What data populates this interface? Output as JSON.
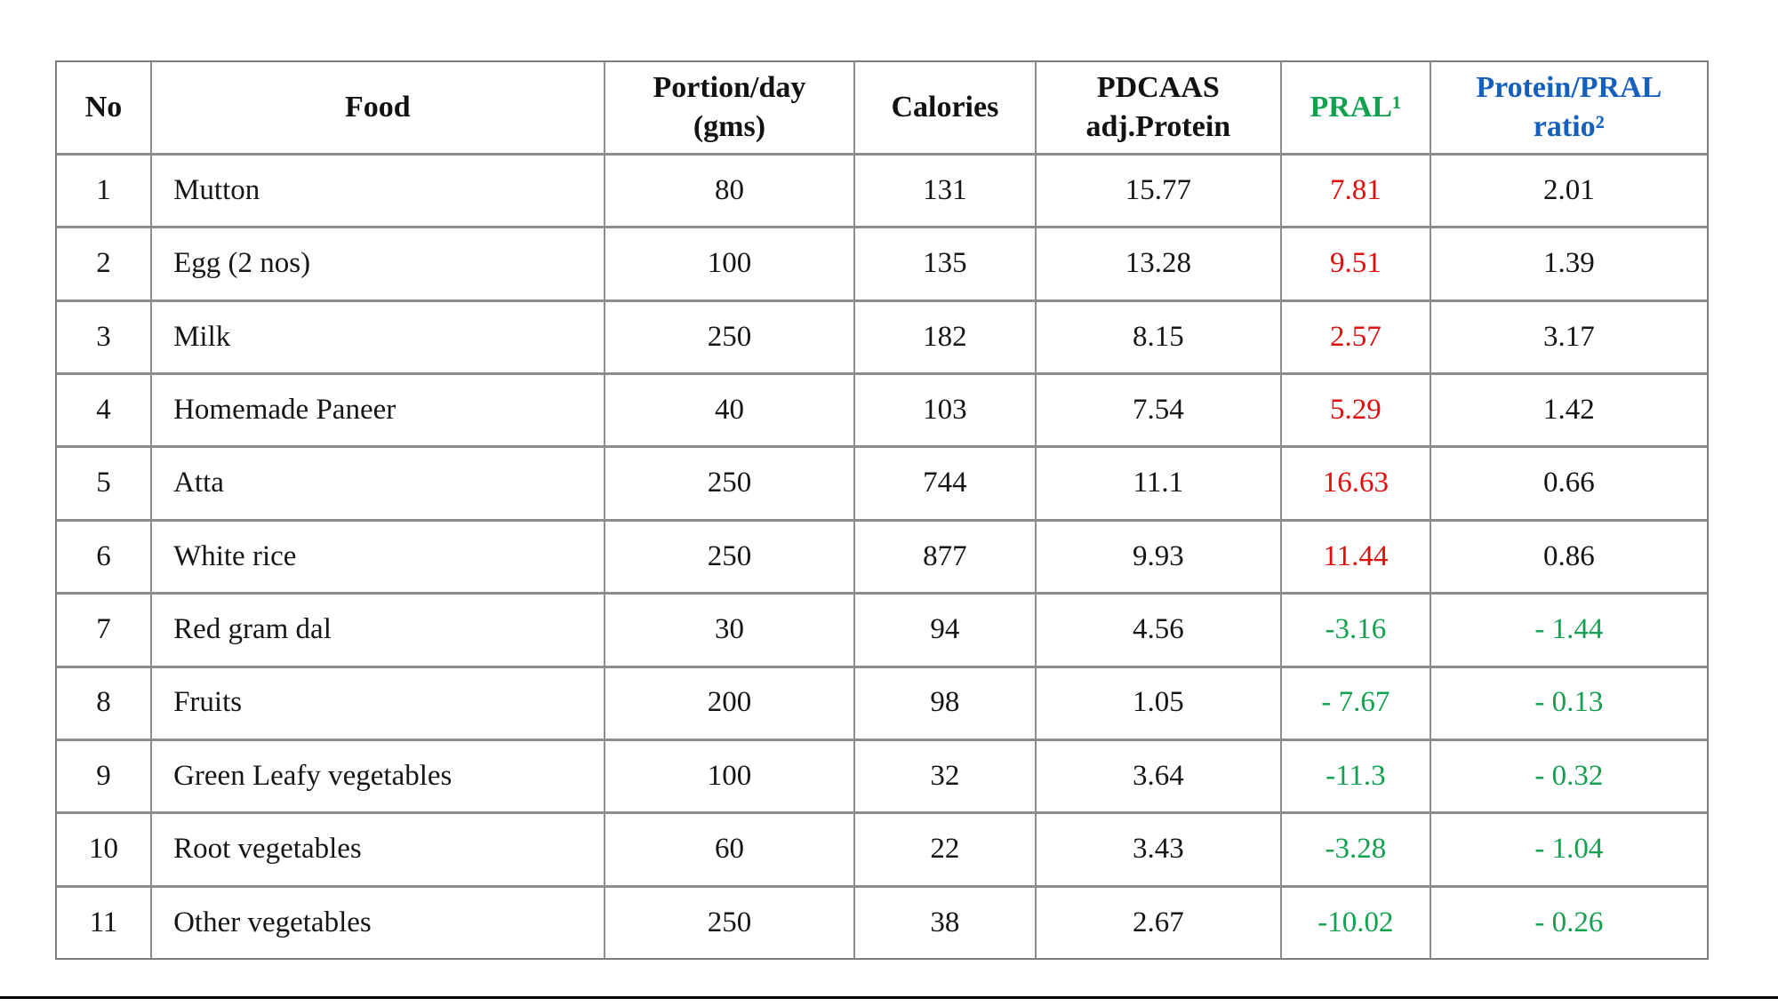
{
  "palette": {
    "header_text": "#121212",
    "body_text": "#141414",
    "acidic_red": "#e20c0c",
    "alkaline_green": "#12a24f",
    "ratio_blue": "#1560bd",
    "gridline_gray": "#8c8c8c",
    "bottom_rule_black": "#000000"
  },
  "chart_data": {
    "type": "table",
    "columns": [
      {
        "key": "no",
        "label": "No",
        "color": "#121212",
        "align": "center"
      },
      {
        "key": "food",
        "label": "Food",
        "color": "#121212",
        "align": "center"
      },
      {
        "key": "portion",
        "label": "Portion/day\n(gms)",
        "color": "#121212",
        "align": "center"
      },
      {
        "key": "calories",
        "label": "Calories",
        "color": "#121212",
        "align": "center"
      },
      {
        "key": "protein",
        "label": "PDCAAS\nadj.Protein",
        "color": "#121212",
        "align": "center"
      },
      {
        "key": "pral",
        "label": "PRAL¹",
        "color": "#12a24f",
        "align": "center"
      },
      {
        "key": "ratio",
        "label": "Protein/PRAL\nratio²",
        "color": "#1560bd",
        "align": "center"
      }
    ],
    "food_column_align": "left",
    "rows": [
      {
        "no": "1",
        "food": "Mutton",
        "portion": "80",
        "calories": "131",
        "protein": "15.77",
        "pral": "7.81",
        "ratio": "2.01",
        "pral_color": "#e20c0c",
        "ratio_color": "#141414"
      },
      {
        "no": "2",
        "food": "Egg (2 nos)",
        "portion": "100",
        "calories": "135",
        "protein": "13.28",
        "pral": "9.51",
        "ratio": "1.39",
        "pral_color": "#e20c0c",
        "ratio_color": "#141414"
      },
      {
        "no": "3",
        "food": "Milk",
        "portion": "250",
        "calories": "182",
        "protein": "8.15",
        "pral": "2.57",
        "ratio": "3.17",
        "pral_color": "#e20c0c",
        "ratio_color": "#141414"
      },
      {
        "no": "4",
        "food": "Homemade Paneer",
        "portion": "40",
        "calories": "103",
        "protein": "7.54",
        "pral": "5.29",
        "ratio": "1.42",
        "pral_color": "#e20c0c",
        "ratio_color": "#141414"
      },
      {
        "no": "5",
        "food": "Atta",
        "portion": "250",
        "calories": "744",
        "protein": "11.1",
        "pral": "16.63",
        "ratio": "0.66",
        "pral_color": "#e20c0c",
        "ratio_color": "#141414"
      },
      {
        "no": "6",
        "food": "White rice",
        "portion": "250",
        "calories": "877",
        "protein": "9.93",
        "pral": "11.44",
        "ratio": "0.86",
        "pral_color": "#e20c0c",
        "ratio_color": "#141414"
      },
      {
        "no": "7",
        "food": "Red gram dal",
        "portion": "30",
        "calories": "94",
        "protein": "4.56",
        "pral": "-3.16",
        "ratio": "- 1.44",
        "pral_color": "#12a24f",
        "ratio_color": "#12a24f"
      },
      {
        "no": "8",
        "food": "Fruits",
        "portion": "200",
        "calories": "98",
        "protein": "1.05",
        "pral": "- 7.67",
        "ratio": "- 0.13",
        "pral_color": "#12a24f",
        "ratio_color": "#12a24f"
      },
      {
        "no": "9",
        "food": "Green Leafy vegetables",
        "portion": "100",
        "calories": "32",
        "protein": "3.64",
        "pral": "-11.3",
        "ratio": "- 0.32",
        "pral_color": "#12a24f",
        "ratio_color": "#12a24f"
      },
      {
        "no": "10",
        "food": "Root vegetables",
        "portion": "60",
        "calories": "22",
        "protein": "3.43",
        "pral": "-3.28",
        "ratio": "- 1.04",
        "pral_color": "#12a24f",
        "ratio_color": "#12a24f"
      },
      {
        "no": "11",
        "food": "Other vegetables",
        "portion": "250",
        "calories": "38",
        "protein": "2.67",
        "pral": "-10.02",
        "ratio": "- 0.26",
        "pral_color": "#12a24f",
        "ratio_color": "#12a24f"
      }
    ]
  }
}
